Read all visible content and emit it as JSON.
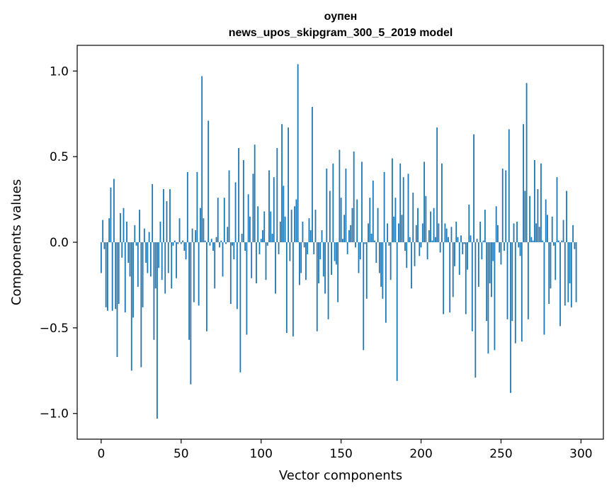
{
  "chart_data": {
    "type": "bar",
    "title": "оупен",
    "subtitle": "news_upos_skipgram_300_5_2019 model",
    "xlabel": "Vector components",
    "ylabel": "Components values",
    "xlim": [
      -15,
      314
    ],
    "ylim": [
      -1.15,
      1.15
    ],
    "xticks": [
      0,
      50,
      100,
      150,
      200,
      250,
      300
    ],
    "xtick_labels": [
      "0",
      "50",
      "100",
      "150",
      "200",
      "250",
      "300"
    ],
    "yticks": [
      -1.0,
      -0.5,
      0.0,
      0.5,
      1.0
    ],
    "ytick_labels": [
      "−1.0",
      "−0.5",
      "0.0",
      "0.5",
      "1.0"
    ],
    "bar_color": "#1f77b4",
    "values": [
      -0.18,
      0.13,
      -0.04,
      -0.38,
      -0.4,
      0.14,
      0.32,
      -0.4,
      0.37,
      -0.39,
      -0.67,
      -0.36,
      0.17,
      -0.09,
      0.2,
      -0.41,
      0.12,
      -0.12,
      -0.2,
      -0.75,
      -0.44,
      0.1,
      -0.02,
      -0.26,
      0.19,
      -0.73,
      -0.38,
      0.08,
      -0.12,
      -0.18,
      0.06,
      -0.2,
      0.34,
      -0.57,
      -0.27,
      -1.03,
      -0.15,
      0.12,
      -0.22,
      0.31,
      -0.3,
      0.24,
      -0.18,
      0.31,
      -0.27,
      -0.02,
      0.01,
      -0.21,
      -0.01,
      0.14,
      -0.01,
      0.01,
      -0.05,
      -0.1,
      0.41,
      -0.57,
      -0.83,
      0.08,
      -0.35,
      0.07,
      0.41,
      -0.37,
      0.2,
      0.97,
      0.14,
      0.01,
      -0.52,
      0.71,
      -0.02,
      0.02,
      -0.05,
      -0.27,
      0.03,
      0.26,
      -0.03,
      0.01,
      -0.2,
      0.26,
      -0.01,
      0.09,
      0.42,
      -0.36,
      -0.02,
      -0.1,
      0.35,
      -0.39,
      0.55,
      -0.76,
      0.05,
      0.48,
      -0.05,
      -0.54,
      0.28,
      0.15,
      -0.21,
      0.4,
      0.57,
      -0.24,
      0.21,
      -0.07,
      0.02,
      0.07,
      0.18,
      -0.22,
      -0.02,
      0.42,
      0.18,
      0.05,
      0.38,
      -0.3,
      0.55,
      -0.07,
      0.12,
      0.69,
      0.33,
      0.15,
      -0.53,
      0.67,
      -0.11,
      0.19,
      -0.55,
      0.21,
      0.25,
      1.04,
      -0.25,
      -0.18,
      0.12,
      -0.03,
      -0.22,
      -0.07,
      0.14,
      0.07,
      0.79,
      -0.07,
      0.19,
      -0.52,
      -0.24,
      -0.1,
      0.07,
      -0.2,
      -0.3,
      0.43,
      -0.45,
      0.3,
      -0.19,
      0.46,
      -0.11,
      -0.13,
      -0.35,
      0.54,
      0.26,
      0.02,
      0.16,
      0.43,
      -0.07,
      0.07,
      0.1,
      0.2,
      0.53,
      -0.03,
      0.25,
      -0.18,
      -0.1,
      0.47,
      -0.63,
      -0.01,
      -0.33,
      0.11,
      0.26,
      0.05,
      0.36,
      0.01,
      -0.12,
      0.2,
      -0.18,
      -0.26,
      -0.33,
      0.41,
      -0.47,
      0.11,
      -0.02,
      -0.22,
      0.49,
      0.15,
      0.26,
      -0.81,
      0.11,
      0.46,
      0.16,
      0.38,
      -0.05,
      -0.15,
      0.4,
      0.03,
      -0.27,
      0.29,
      -0.14,
      0.1,
      0.2,
      -0.08,
      -0.03,
      0.11,
      0.47,
      0.27,
      -0.1,
      0.07,
      0.18,
      0.01,
      0.2,
      0.03,
      0.67,
      0.11,
      -0.06,
      0.46,
      -0.42,
      0.11,
      0.08,
      0.03,
      -0.41,
      0.09,
      -0.32,
      -0.14,
      0.12,
      0.03,
      -0.19,
      0.04,
      -0.07,
      -0.01,
      -0.42,
      -0.16,
      0.22,
      0.04,
      -0.52,
      0.63,
      -0.79,
      0.02,
      -0.26,
      0.12,
      -0.1,
      0.01,
      0.19,
      -0.46,
      -0.65,
      -0.24,
      -0.32,
      -0.11,
      -0.63,
      0.21,
      0.1,
      -0.06,
      -0.13,
      0.43,
      -0.05,
      0.42,
      -0.45,
      0.66,
      -0.88,
      -0.46,
      0.11,
      -0.59,
      0.12,
      -0.03,
      -0.08,
      -0.58,
      0.69,
      0.3,
      0.93,
      -0.45,
      0.27,
      0.03,
      0.01,
      0.48,
      0.11,
      0.31,
      0.09,
      0.46,
      0.01,
      -0.54,
      0.25,
      0.16,
      -0.36,
      -0.27,
      0.15,
      -0.02,
      -0.22,
      0.38,
      0.01,
      -0.49,
      0.01,
      0.13,
      -0.37,
      0.3,
      -0.35,
      -0.24,
      -0.38,
      0.1,
      -0.04,
      -0.35
    ]
  }
}
